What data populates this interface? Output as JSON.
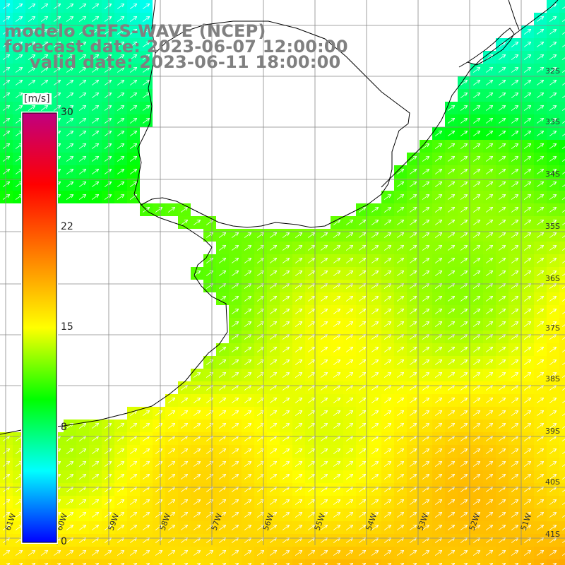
{
  "title": {
    "line1": "modelo GEFS-WAVE (NCEP)",
    "line2": "forecast date: 2023-06-07 12:00:00",
    "line3": "valid date: 2023-06-11 18:00:00"
  },
  "colorbar": {
    "unit": "[m/s]",
    "min": 0,
    "max": 30,
    "ticks": [
      "30",
      "22",
      "15",
      "8",
      "0"
    ],
    "tick_values": [
      30,
      22,
      15,
      8,
      0
    ],
    "colors": [
      "#0000ff",
      "#00ffff",
      "#00ff00",
      "#ffff00",
      "#ff8000",
      "#ff0000",
      "#c00080"
    ]
  },
  "map": {
    "lon_labels": [
      "61W",
      "60W",
      "59W",
      "58W",
      "57W",
      "56W",
      "55W",
      "54W",
      "53W",
      "52W",
      "51W"
    ],
    "lat_labels": [
      "32S",
      "33S",
      "34S",
      "35S",
      "36S",
      "37S",
      "38S",
      "39S",
      "40S",
      "41S"
    ],
    "field_colors": {
      "low": "#00e0ff",
      "mid": "#20ff20",
      "high": "#ffff00",
      "arrow": "#ffffff",
      "coast": "#000000",
      "grid": "#808080"
    }
  }
}
